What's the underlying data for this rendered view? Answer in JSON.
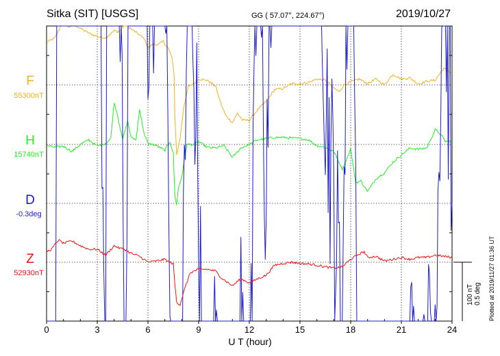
{
  "header": {
    "station": "Sitka (SIT)  [USGS]",
    "coords": "GG ( 57.07°, 224.67°)",
    "date": "2019/10/27"
  },
  "footer": {
    "xlabel": "U T (hour)",
    "plotted": "Plotted at 2019/11/27 01:36 UT",
    "scale_nt": "100 nT",
    "scale_deg": "0.5 deg"
  },
  "colors": {
    "F": "#f0b020",
    "H": "#22ee22",
    "D": "#1a1acc",
    "Z": "#ee1111"
  },
  "components": [
    {
      "key": "F",
      "label": "F",
      "baseline": "55300nT"
    },
    {
      "key": "H",
      "label": "H",
      "baseline": "15740nT"
    },
    {
      "key": "D",
      "label": "D",
      "baseline": "-0.3deg"
    },
    {
      "key": "Z",
      "label": "Z",
      "baseline": "52930nT"
    }
  ],
  "chart_data": {
    "type": "line",
    "title": "Sitka (SIT)  [USGS]",
    "xlabel": "U T (hour)",
    "xlim": [
      0,
      24
    ],
    "x_ticks": [
      0,
      3,
      6,
      9,
      12,
      15,
      18,
      21,
      24
    ],
    "grid": true,
    "scale": "100 nT / 0.5 deg",
    "series": [
      {
        "name": "F",
        "units": "nT",
        "baseline": 55300,
        "x": [
          0,
          0.5,
          0.8,
          1,
          1.3,
          1.6,
          2,
          2.5,
          3,
          3.5,
          4,
          4.3,
          4.6,
          5,
          5.5,
          5.8,
          6,
          6.3,
          6.6,
          6.9,
          7.2,
          7.4,
          7.55,
          7.6,
          7.7,
          7.8,
          7.9,
          8.1,
          8.4,
          8.7,
          9,
          9.5,
          10,
          10.3,
          10.6,
          11,
          11.3,
          11.6,
          12,
          12.5,
          13,
          13.5,
          14,
          14.5,
          15,
          15.5,
          16,
          16.5,
          17,
          17.3,
          17.6,
          18,
          18.5,
          19,
          19.5,
          20,
          20.5,
          21,
          21.5,
          22,
          22.5,
          23,
          23.5,
          24
        ],
        "values": [
          72,
          80,
          98,
          112,
          98,
          103,
          96,
          88,
          82,
          80,
          92,
          90,
          103,
          95,
          85,
          78,
          62,
          70,
          68,
          74,
          62,
          48,
          18,
          -60,
          -118,
          -106,
          -90,
          -42,
          -2,
          2,
          10,
          8,
          -2,
          -30,
          -52,
          -64,
          -48,
          -60,
          -60,
          -42,
          -28,
          -8,
          -6,
          2,
          2,
          4,
          10,
          8,
          -5,
          -12,
          0,
          5,
          10,
          2,
          10,
          0,
          18,
          10,
          12,
          2,
          6,
          8,
          28,
          20
        ]
      },
      {
        "name": "H",
        "units": "nT",
        "baseline": 15740,
        "x": [
          0,
          0.5,
          1,
          1.5,
          2,
          2.5,
          3,
          3.5,
          3.8,
          4,
          4.2,
          4.5,
          4.8,
          5,
          5.3,
          5.5,
          5.8,
          6,
          6.5,
          7,
          7.3,
          7.5,
          7.6,
          7.7,
          7.8,
          8,
          8.3,
          8.7,
          9,
          9.5,
          10,
          10.5,
          11,
          11.5,
          12,
          12.5,
          13,
          13.5,
          14,
          15,
          15.5,
          16,
          16.5,
          17,
          17.5,
          18,
          18.3,
          18.6,
          19,
          19.5,
          20,
          20.5,
          21,
          21.5,
          22,
          22.5,
          23,
          23.3,
          23.6,
          24
        ],
        "values": [
          -2,
          -5,
          -3,
          -12,
          0,
          8,
          -3,
          2,
          10,
          72,
          50,
          8,
          40,
          12,
          8,
          60,
          15,
          2,
          -2,
          -10,
          5,
          -15,
          -90,
          -102,
          -75,
          -55,
          0,
          0,
          5,
          -5,
          -6,
          -2,
          -22,
          -6,
          0,
          8,
          10,
          12,
          12,
          10,
          8,
          -2,
          -5,
          -12,
          -42,
          -8,
          -65,
          -62,
          -80,
          -58,
          -48,
          -30,
          -18,
          -6,
          -8,
          -6,
          25,
          18,
          5,
          6
        ]
      },
      {
        "name": "D",
        "units": "deg",
        "baseline": -0.3,
        "x": [
          0,
          0.3,
          0.6,
          1,
          1.5,
          2,
          2.5,
          3,
          3.5,
          3.9,
          4,
          4.3,
          4.7,
          5,
          5.3,
          5.5,
          5.8,
          6,
          6.5,
          7,
          7.3,
          7.5,
          7.6,
          7.75,
          7.9,
          8.1,
          8.5,
          9,
          9.5,
          10,
          10.5,
          11,
          11.5,
          12,
          12.5,
          13,
          13.5,
          14,
          15,
          15.5,
          16,
          16.5,
          17,
          17.5,
          18,
          18.3,
          18.6,
          19,
          19.5,
          20,
          20.5,
          21,
          21.5,
          22,
          22.5,
          23,
          23.5,
          24
        ],
        "values": [
          -8,
          -15,
          2,
          22,
          12,
          12,
          5,
          10,
          -5,
          48,
          58,
          5,
          -5,
          25,
          12,
          30,
          18,
          2,
          5,
          5,
          -2,
          -30,
          -42,
          -30,
          -18,
          0,
          5,
          0,
          -8,
          -2,
          -5,
          -8,
          -2,
          -5,
          5,
          0,
          8,
          5,
          10,
          5,
          8,
          2,
          0,
          -2,
          8,
          0,
          -20,
          -25,
          -15,
          -12,
          -8,
          -8,
          -2,
          -5,
          -3,
          -2,
          5,
          0
        ]
      },
      {
        "name": "Z",
        "units": "nT",
        "baseline": 52930,
        "x": [
          0,
          0.3,
          0.7,
          1,
          1.5,
          2,
          2.5,
          3,
          3.5,
          4,
          4.3,
          4.6,
          5,
          5.5,
          6,
          6.5,
          7,
          7.3,
          7.5,
          7.6,
          7.7,
          7.9,
          8.1,
          8.5,
          9,
          9.5,
          10,
          10.3,
          10.6,
          11,
          11.5,
          12,
          12.5,
          13,
          13.5,
          14,
          14.5,
          15,
          15.5,
          16,
          16.5,
          17,
          17.5,
          18,
          18.5,
          18.8,
          19,
          19.5,
          20,
          20.5,
          21,
          21.5,
          22,
          22.5,
          23,
          23.5,
          24
        ],
        "values": [
          18,
          22,
          38,
          32,
          36,
          28,
          22,
          22,
          12,
          28,
          24,
          22,
          15,
          10,
          0,
          2,
          5,
          0,
          -3,
          -40,
          -68,
          -72,
          -52,
          -18,
          -12,
          -12,
          -15,
          -25,
          -32,
          -40,
          -28,
          -35,
          -28,
          -22,
          -5,
          -2,
          0,
          -2,
          -3,
          -5,
          -8,
          -10,
          -8,
          5,
          14,
          18,
          8,
          10,
          2,
          5,
          8,
          5,
          8,
          8,
          12,
          10,
          8
        ]
      }
    ]
  }
}
